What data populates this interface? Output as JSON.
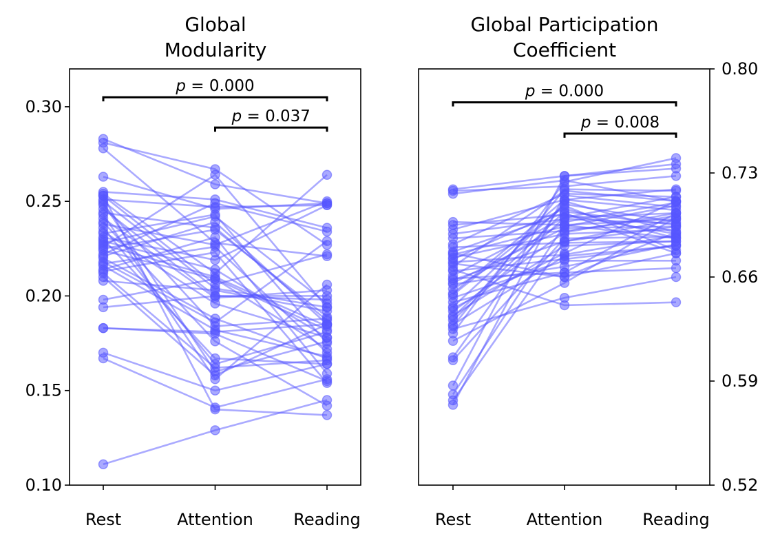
{
  "chart_data": [
    {
      "type": "scatter",
      "title": "Global\nModularity",
      "categories": [
        "Rest",
        "Attention",
        "Reading"
      ],
      "ylim": [
        0.1,
        0.32
      ],
      "yticks": [
        "0.10",
        "0.15",
        "0.20",
        "0.25",
        "0.30"
      ],
      "ytick_values": [
        0.1,
        0.15,
        0.2,
        0.25,
        0.3
      ],
      "yaxis_side": "left",
      "color": "#5555ff",
      "annotations": [
        {
          "from": "Rest",
          "to": "Reading",
          "text": "= 0.000",
          "symbol": "p",
          "level": 0.305
        },
        {
          "from": "Attention",
          "to": "Reading",
          "text": "= 0.037",
          "symbol": "p",
          "level": 0.289
        }
      ],
      "subjects": [
        [
          0.283,
          0.259,
          0.249
        ],
        [
          0.281,
          0.267,
          0.227
        ],
        [
          0.278,
          0.228,
          0.221
        ],
        [
          0.263,
          0.246,
          0.249
        ],
        [
          0.255,
          0.251,
          0.236
        ],
        [
          0.254,
          0.212,
          0.264
        ],
        [
          0.253,
          0.206,
          0.222
        ],
        [
          0.251,
          0.247,
          0.248
        ],
        [
          0.25,
          0.204,
          0.194
        ],
        [
          0.248,
          0.184,
          0.188
        ],
        [
          0.246,
          0.2,
          0.198
        ],
        [
          0.244,
          0.236,
          0.187
        ],
        [
          0.241,
          0.199,
          0.203
        ],
        [
          0.238,
          0.227,
          0.25
        ],
        [
          0.236,
          0.164,
          0.181
        ],
        [
          0.233,
          0.243,
          0.175
        ],
        [
          0.231,
          0.219,
          0.248
        ],
        [
          0.229,
          0.214,
          0.178
        ],
        [
          0.227,
          0.21,
          0.184
        ],
        [
          0.224,
          0.209,
          0.172
        ],
        [
          0.222,
          0.249,
          0.234
        ],
        [
          0.22,
          0.188,
          0.167
        ],
        [
          0.218,
          0.186,
          0.229
        ],
        [
          0.216,
          0.182,
          0.168
        ],
        [
          0.214,
          0.231,
          0.159
        ],
        [
          0.212,
          0.162,
          0.166
        ],
        [
          0.21,
          0.158,
          0.185
        ],
        [
          0.208,
          0.203,
          0.192
        ],
        [
          0.23,
          0.167,
          0.164
        ],
        [
          0.226,
          0.264,
          0.194
        ],
        [
          0.221,
          0.239,
          0.185
        ],
        [
          0.217,
          0.226,
          0.17
        ],
        [
          0.213,
          0.223,
          0.154
        ],
        [
          0.198,
          0.209,
          0.182
        ],
        [
          0.194,
          0.2,
          0.2
        ],
        [
          0.183,
          0.18,
          0.155
        ],
        [
          0.183,
          0.181,
          0.185
        ],
        [
          0.17,
          0.15,
          0.164
        ],
        [
          0.167,
          0.141,
          0.156
        ],
        [
          0.111,
          0.129,
          0.145
        ],
        [
          0.253,
          0.14,
          0.137
        ],
        [
          0.249,
          0.16,
          0.176
        ],
        [
          0.243,
          0.156,
          0.206
        ],
        [
          0.239,
          0.176,
          0.142
        ],
        [
          0.234,
          0.196,
          0.178
        ],
        [
          0.228,
          0.242,
          0.196
        ],
        [
          0.225,
          0.235,
          0.189
        ]
      ]
    },
    {
      "type": "scatter",
      "title": "Global Participation\nCoefficient",
      "categories": [
        "Rest",
        "Attention",
        "Reading"
      ],
      "ylim": [
        0.52,
        0.8
      ],
      "yticks": [
        "0.52",
        "0.59",
        "0.66",
        "0.73",
        "0.80"
      ],
      "ytick_values": [
        0.52,
        0.59,
        0.66,
        0.73,
        0.8
      ],
      "yaxis_side": "right",
      "color": "#5555ff",
      "annotations": [
        {
          "from": "Rest",
          "to": "Reading",
          "text": "= 0.000",
          "symbol": "p",
          "level": 0.7775
        },
        {
          "from": "Attention",
          "to": "Reading",
          "text": "= 0.008",
          "symbol": "p",
          "level": 0.7565
        }
      ],
      "subjects": [
        [
          0.719,
          0.728,
          0.733
        ],
        [
          0.716,
          0.725,
          0.711
        ],
        [
          0.718,
          0.721,
          0.728
        ],
        [
          0.697,
          0.695,
          0.699
        ],
        [
          0.695,
          0.702,
          0.689
        ],
        [
          0.692,
          0.712,
          0.705
        ],
        [
          0.689,
          0.699,
          0.696
        ],
        [
          0.686,
          0.691,
          0.701
        ],
        [
          0.682,
          0.716,
          0.714
        ],
        [
          0.68,
          0.683,
          0.684
        ],
        [
          0.677,
          0.703,
          0.676
        ],
        [
          0.675,
          0.694,
          0.708
        ],
        [
          0.673,
          0.689,
          0.692
        ],
        [
          0.67,
          0.675,
          0.688
        ],
        [
          0.667,
          0.718,
          0.711
        ],
        [
          0.664,
          0.672,
          0.681
        ],
        [
          0.661,
          0.7,
          0.703
        ],
        [
          0.658,
          0.684,
          0.694
        ],
        [
          0.655,
          0.667,
          0.682
        ],
        [
          0.652,
          0.697,
          0.71
        ],
        [
          0.649,
          0.712,
          0.719
        ],
        [
          0.646,
          0.671,
          0.671
        ],
        [
          0.643,
          0.663,
          0.666
        ],
        [
          0.64,
          0.709,
          0.697
        ],
        [
          0.637,
          0.69,
          0.703
        ],
        [
          0.634,
          0.681,
          0.684
        ],
        [
          0.631,
          0.7,
          0.714
        ],
        [
          0.628,
          0.674,
          0.681
        ],
        [
          0.625,
          0.646,
          0.66
        ],
        [
          0.622,
          0.724,
          0.74
        ],
        [
          0.617,
          0.656,
          0.7
        ],
        [
          0.606,
          0.711,
          0.69
        ],
        [
          0.604,
          0.686,
          0.687
        ],
        [
          0.587,
          0.728,
          0.736
        ],
        [
          0.581,
          0.695,
          0.686
        ],
        [
          0.577,
          0.684,
          0.699
        ],
        [
          0.574,
          0.715,
          0.707
        ],
        [
          0.665,
          0.641,
          0.643
        ],
        [
          0.669,
          0.66,
          0.69
        ],
        [
          0.659,
          0.663,
          0.703
        ],
        [
          0.648,
          0.708,
          0.678
        ],
        [
          0.639,
          0.676,
          0.711
        ],
        [
          0.656,
          0.693,
          0.694
        ],
        [
          0.672,
          0.706,
          0.686
        ],
        [
          0.676,
          0.66,
          0.676
        ],
        [
          0.633,
          0.704,
          0.695
        ],
        [
          0.627,
          0.719,
          0.718
        ]
      ]
    }
  ]
}
